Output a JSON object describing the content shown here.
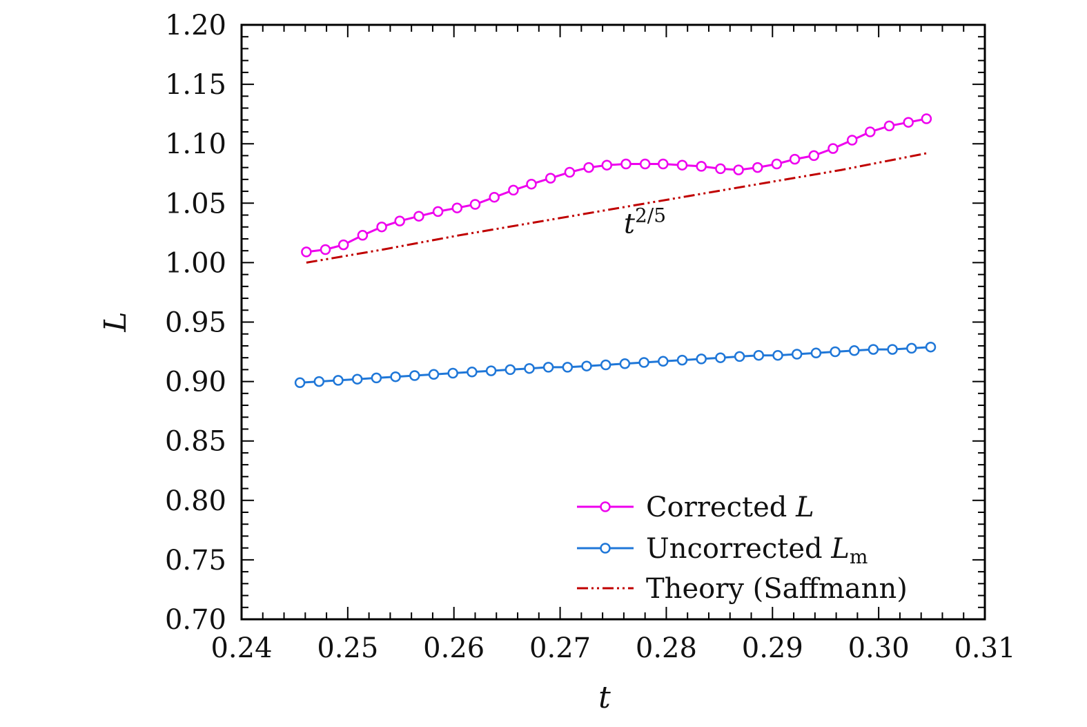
{
  "chart_data": {
    "type": "line",
    "title": "",
    "xlabel": "t",
    "ylabel": "L",
    "xlim": [
      0.24,
      0.31
    ],
    "ylim": [
      0.7,
      1.2
    ],
    "grid": false,
    "legend_position": "bottom-right",
    "x_ticks": [
      "0.24",
      "0.25",
      "0.26",
      "0.27",
      "0.28",
      "0.29",
      "0.30",
      "0.31"
    ],
    "y_ticks": [
      "0.70",
      "0.75",
      "0.80",
      "0.85",
      "0.90",
      "0.95",
      "1.00",
      "1.05",
      "1.10",
      "1.15",
      "1.20"
    ],
    "annotation": {
      "text": "t",
      "superscript": "2/5",
      "x": 0.276,
      "y": 1.025
    },
    "series": [
      {
        "name": "Corrected L",
        "legend_main": "Corrected ",
        "legend_italic": "L",
        "legend_sub": "",
        "color": "#ee00ee",
        "marker": "circle",
        "line_style": "solid",
        "x": [
          0.2461,
          0.2479,
          0.2496,
          0.2514,
          0.2532,
          0.2549,
          0.2567,
          0.2585,
          0.2603,
          0.262,
          0.2638,
          0.2656,
          0.2673,
          0.2691,
          0.2709,
          0.2727,
          0.2744,
          0.2762,
          0.278,
          0.2797,
          0.2815,
          0.2833,
          0.2851,
          0.2868,
          0.2886,
          0.2904,
          0.2921,
          0.2939,
          0.2957,
          0.2975,
          0.2992,
          0.301,
          0.3028,
          0.3045
        ],
        "y": [
          1.009,
          1.011,
          1.015,
          1.023,
          1.03,
          1.035,
          1.039,
          1.043,
          1.046,
          1.049,
          1.055,
          1.061,
          1.066,
          1.071,
          1.076,
          1.08,
          1.082,
          1.083,
          1.083,
          1.083,
          1.082,
          1.081,
          1.079,
          1.078,
          1.08,
          1.083,
          1.087,
          1.09,
          1.096,
          1.103,
          1.11,
          1.115,
          1.118,
          1.121
        ]
      },
      {
        "name": "Uncorrected Lm",
        "legend_main": "Uncorrected ",
        "legend_italic": "L",
        "legend_sub": "m",
        "color": "#1f77d8",
        "marker": "circle",
        "line_style": "solid",
        "x": [
          0.2455,
          0.2473,
          0.2491,
          0.2509,
          0.2527,
          0.2545,
          0.2563,
          0.2581,
          0.2599,
          0.2617,
          0.2635,
          0.2653,
          0.2671,
          0.2689,
          0.2707,
          0.2725,
          0.2743,
          0.2761,
          0.2779,
          0.2797,
          0.2815,
          0.2833,
          0.2851,
          0.2869,
          0.2887,
          0.2905,
          0.2923,
          0.2941,
          0.2959,
          0.2977,
          0.2995,
          0.3013,
          0.3031,
          0.3049
        ],
        "y": [
          0.899,
          0.9,
          0.901,
          0.902,
          0.903,
          0.904,
          0.905,
          0.906,
          0.907,
          0.908,
          0.909,
          0.91,
          0.911,
          0.912,
          0.912,
          0.913,
          0.914,
          0.915,
          0.916,
          0.917,
          0.918,
          0.919,
          0.92,
          0.921,
          0.922,
          0.922,
          0.923,
          0.924,
          0.925,
          0.926,
          0.927,
          0.927,
          0.928,
          0.929
        ]
      },
      {
        "name": "Theory (Saffmann)",
        "legend_main": "Theory (Saffmann)",
        "legend_italic": "",
        "legend_sub": "",
        "color": "#c00000",
        "marker": "none",
        "line_style": "dash-dot-dot",
        "x": [
          0.2461,
          0.2533,
          0.2605,
          0.2677,
          0.2749,
          0.2821,
          0.2893,
          0.2965,
          0.3045
        ],
        "y": [
          1.0,
          1.011,
          1.023,
          1.034,
          1.045,
          1.056,
          1.067,
          1.078,
          1.092
        ]
      }
    ]
  }
}
